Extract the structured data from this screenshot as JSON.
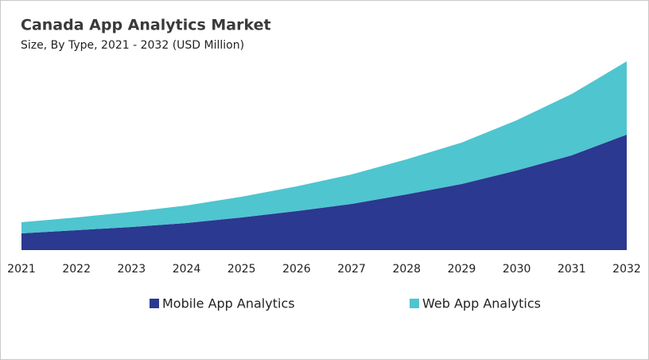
{
  "chart_data": {
    "type": "stacked-area",
    "title": "Canada App Analytics Market",
    "subtitle": "Size, By Type, 2021 - 2032 (USD Million)",
    "categories": [
      "2021",
      "2022",
      "2023",
      "2024",
      "2025",
      "2026",
      "2027",
      "2028",
      "2029",
      "2030",
      "2031",
      "2032"
    ],
    "series": [
      {
        "name": "Mobile App Analytics",
        "color": "#2b3990",
        "values": [
          21,
          25,
          29,
          34,
          41,
          49,
          58,
          70,
          83,
          100,
          119,
          145
        ]
      },
      {
        "name": "Web App Analytics",
        "color": "#4fc5cf",
        "values": [
          14,
          16,
          19,
          22,
          26,
          31,
          37,
          44,
          52,
          63,
          77,
          92
        ]
      }
    ]
  }
}
